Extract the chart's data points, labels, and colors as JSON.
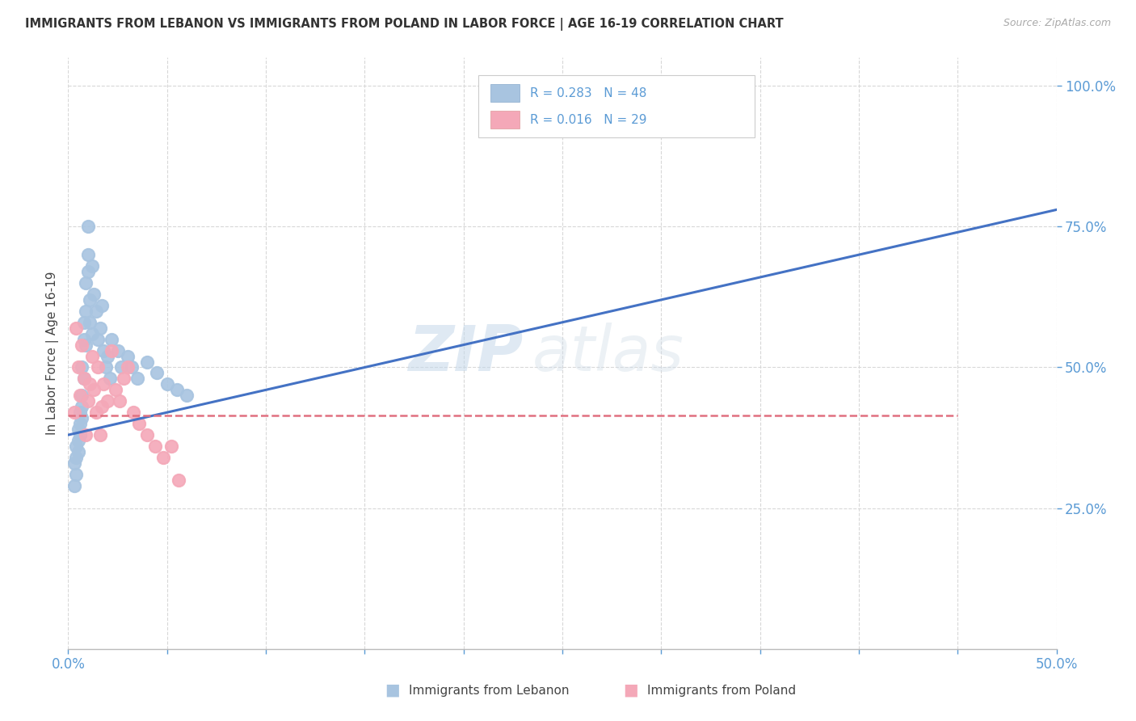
{
  "title": "IMMIGRANTS FROM LEBANON VS IMMIGRANTS FROM POLAND IN LABOR FORCE | AGE 16-19 CORRELATION CHART",
  "source": "Source: ZipAtlas.com",
  "ylabel": "In Labor Force | Age 16-19",
  "xlim": [
    0.0,
    0.5
  ],
  "ylim": [
    0.0,
    1.05
  ],
  "xticks": [
    0.0,
    0.05,
    0.1,
    0.15,
    0.2,
    0.25,
    0.3,
    0.35,
    0.4,
    0.45,
    0.5
  ],
  "xticklabels": [
    "0.0%",
    "",
    "",
    "",
    "",
    "",
    "",
    "",
    "",
    "",
    "50.0%"
  ],
  "yticks": [
    0.25,
    0.5,
    0.75,
    1.0
  ],
  "yticklabels": [
    "25.0%",
    "50.0%",
    "75.0%",
    "100.0%"
  ],
  "lebanon_color": "#a8c4e0",
  "poland_color": "#f4a8b8",
  "lebanon_line_color": "#4472c4",
  "poland_line_color": "#e07080",
  "lebanon_R": 0.283,
  "lebanon_N": 48,
  "poland_R": 0.016,
  "poland_N": 29,
  "watermark_zip": "ZIP",
  "watermark_atlas": "atlas",
  "background_color": "#ffffff",
  "grid_color": "#d8d8d8",
  "axis_color": "#5b9bd5",
  "tick_color": "#5b9bd5",
  "lebanon_x": [
    0.003,
    0.003,
    0.004,
    0.004,
    0.004,
    0.005,
    0.005,
    0.005,
    0.006,
    0.006,
    0.006,
    0.007,
    0.007,
    0.007,
    0.007,
    0.008,
    0.008,
    0.008,
    0.009,
    0.009,
    0.009,
    0.01,
    0.01,
    0.01,
    0.011,
    0.011,
    0.012,
    0.012,
    0.013,
    0.014,
    0.015,
    0.016,
    0.017,
    0.018,
    0.019,
    0.02,
    0.021,
    0.022,
    0.025,
    0.027,
    0.03,
    0.032,
    0.035,
    0.04,
    0.045,
    0.05,
    0.055,
    0.06
  ],
  "lebanon_y": [
    0.33,
    0.29,
    0.36,
    0.34,
    0.31,
    0.39,
    0.37,
    0.35,
    0.42,
    0.4,
    0.38,
    0.45,
    0.43,
    0.41,
    0.5,
    0.58,
    0.55,
    0.48,
    0.65,
    0.6,
    0.54,
    0.7,
    0.67,
    0.75,
    0.62,
    0.58,
    0.68,
    0.56,
    0.63,
    0.6,
    0.55,
    0.57,
    0.61,
    0.53,
    0.5,
    0.52,
    0.48,
    0.55,
    0.53,
    0.5,
    0.52,
    0.5,
    0.48,
    0.51,
    0.49,
    0.47,
    0.46,
    0.45
  ],
  "poland_x": [
    0.003,
    0.004,
    0.005,
    0.006,
    0.007,
    0.008,
    0.009,
    0.01,
    0.011,
    0.012,
    0.013,
    0.014,
    0.015,
    0.016,
    0.017,
    0.018,
    0.02,
    0.022,
    0.024,
    0.026,
    0.028,
    0.03,
    0.033,
    0.036,
    0.04,
    0.044,
    0.048,
    0.052,
    0.056
  ],
  "poland_y": [
    0.42,
    0.57,
    0.5,
    0.45,
    0.54,
    0.48,
    0.38,
    0.44,
    0.47,
    0.52,
    0.46,
    0.42,
    0.5,
    0.38,
    0.43,
    0.47,
    0.44,
    0.53,
    0.46,
    0.44,
    0.48,
    0.5,
    0.42,
    0.4,
    0.38,
    0.36,
    0.34,
    0.36,
    0.3
  ],
  "lebanon_trend_x": [
    0.0,
    0.5
  ],
  "lebanon_trend_y": [
    0.38,
    0.78
  ],
  "poland_trend_x": [
    0.0,
    0.45
  ],
  "poland_trend_y": [
    0.415,
    0.415
  ]
}
